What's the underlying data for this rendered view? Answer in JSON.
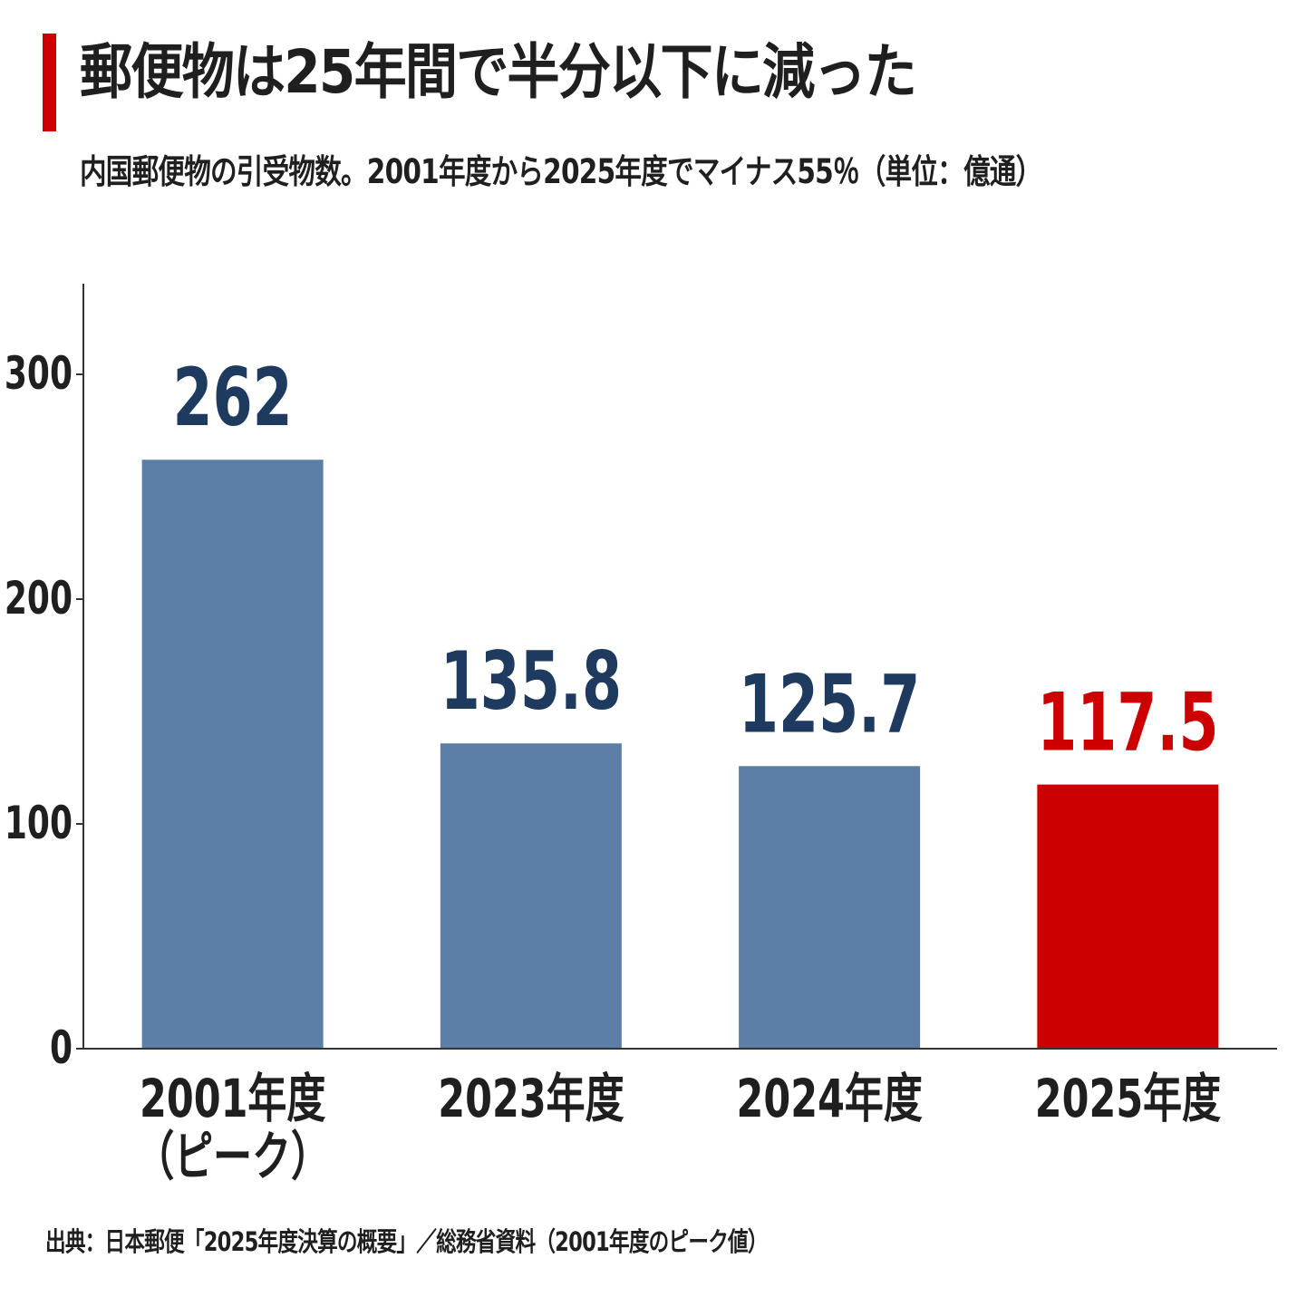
{
  "title": "郵便物は25年間で半分以下に減った",
  "subtitle": "内国郵便物の引受物数。2001年度から2025年度でマイナス55％（単位：億通）",
  "source": "出典：日本郵便「2025年度決算の概要」／総務省資料（2001年度のピーク値）",
  "colors": {
    "accent": "#cc0000",
    "bar_default": "#5b7da6",
    "bar_highlight": "#cc0000",
    "label_default": "#1f3a5f",
    "label_highlight": "#cc0000",
    "axis": "#333333",
    "text": "#1f1f1f"
  },
  "chart_data": {
    "type": "bar",
    "title": "郵便物は25年間で半分以下に減った",
    "subtitle": "内国郵便物の引受物数。2001年度から2025年度でマイナス55％（単位：億通）",
    "xlabel": "",
    "ylabel": "",
    "ylim": [
      0,
      340
    ],
    "yticks": [
      "0",
      "100",
      "200",
      "300"
    ],
    "ytick_values": [
      0,
      100,
      200,
      300
    ],
    "grid": false,
    "categories": [
      {
        "line1": "2001年度",
        "line2": "（ピーク）"
      },
      {
        "line1": "2023年度",
        "line2": ""
      },
      {
        "line1": "2024年度",
        "line2": ""
      },
      {
        "line1": "2025年度",
        "line2": ""
      }
    ],
    "values": [
      262,
      135.8,
      125.7,
      117.5
    ],
    "value_labels": [
      "262",
      "135.8",
      "125.7",
      "117.5"
    ],
    "highlight_index": 3
  }
}
